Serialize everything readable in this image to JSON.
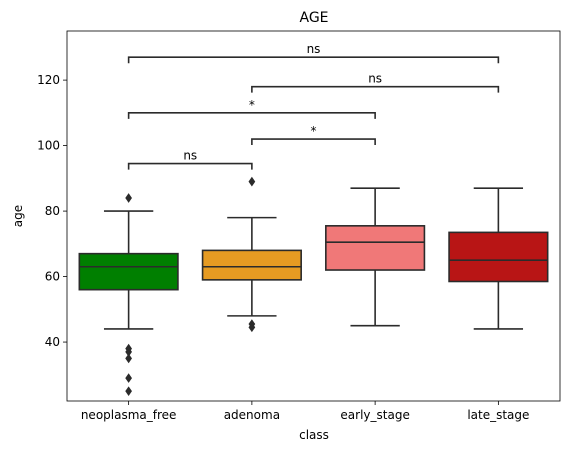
{
  "chart_data": {
    "type": "box",
    "title": "AGE",
    "xlabel": "class",
    "ylabel": "age",
    "ylim": [
      22,
      135
    ],
    "yticks": [
      40,
      60,
      80,
      100,
      120
    ],
    "categories": [
      "neoplasma_free",
      "adenoma",
      "early_stage",
      "late_stage"
    ],
    "boxes": [
      {
        "name": "neoplasma_free",
        "color": "#007f00",
        "whisker_low": 44,
        "q1": 56,
        "median": 63,
        "q3": 67,
        "whisker_high": 80,
        "outliers": [
          84,
          38,
          37,
          35,
          29,
          25
        ]
      },
      {
        "name": "adenoma",
        "color": "#e69b22",
        "whisker_low": 48,
        "q1": 59,
        "median": 63,
        "q3": 68,
        "whisker_high": 78,
        "outliers": [
          89,
          45.5,
          44.5
        ]
      },
      {
        "name": "early_stage",
        "color": "#f07878",
        "whisker_low": 45,
        "q1": 62,
        "median": 70.5,
        "q3": 75.5,
        "whisker_high": 87,
        "outliers": []
      },
      {
        "name": "late_stage",
        "color": "#b81515",
        "whisker_low": 44,
        "q1": 58.5,
        "median": 65,
        "q3": 73.5,
        "whisker_high": 87,
        "outliers": []
      }
    ],
    "annotations": [
      {
        "from": 0,
        "to": 1,
        "y": 94.5,
        "label": "ns"
      },
      {
        "from": 1,
        "to": 2,
        "y": 102,
        "label": "*"
      },
      {
        "from": 0,
        "to": 2,
        "y": 110,
        "label": "*"
      },
      {
        "from": 1,
        "to": 3,
        "y": 118,
        "label": "ns"
      },
      {
        "from": 0,
        "to": 3,
        "y": 127,
        "label": "ns"
      }
    ]
  }
}
